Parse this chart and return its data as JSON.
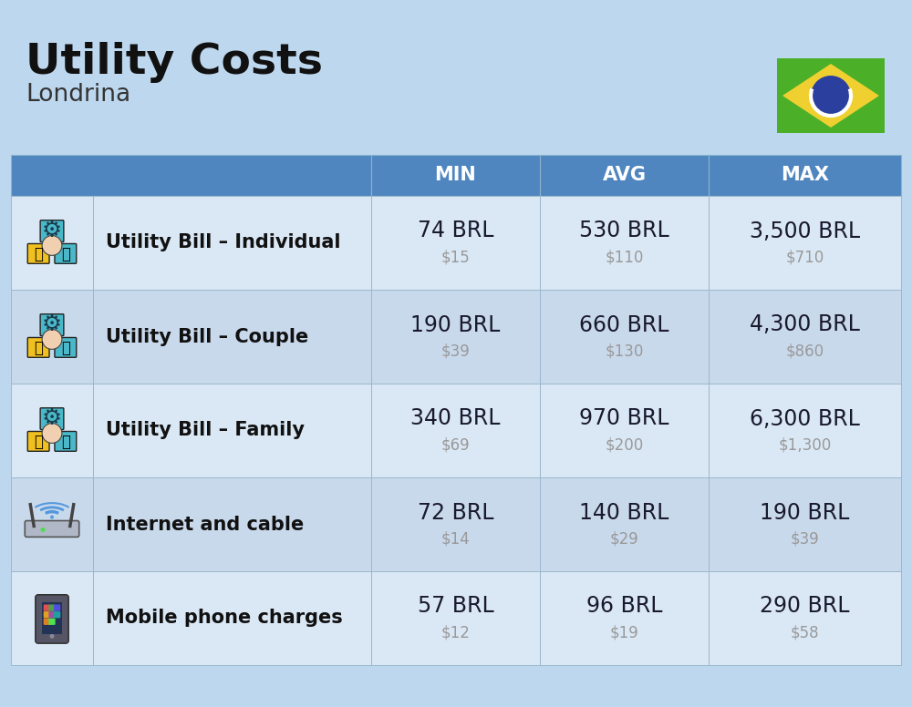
{
  "title": "Utility Costs",
  "subtitle": "Londrina",
  "background_color": "#bdd7ee",
  "header_bg_color": "#4f86c0",
  "header_text_color": "#ffffff",
  "row_bg_light": "#dae8f5",
  "row_bg_dark": "#c9d9ec",
  "col_headers": [
    "MIN",
    "AVG",
    "MAX"
  ],
  "rows": [
    {
      "label": "Utility Bill – Individual",
      "min_brl": "74 BRL",
      "min_usd": "$15",
      "avg_brl": "530 BRL",
      "avg_usd": "$110",
      "max_brl": "3,500 BRL",
      "max_usd": "$710"
    },
    {
      "label": "Utility Bill – Couple",
      "min_brl": "190 BRL",
      "min_usd": "$39",
      "avg_brl": "660 BRL",
      "avg_usd": "$130",
      "max_brl": "4,300 BRL",
      "max_usd": "$860"
    },
    {
      "label": "Utility Bill – Family",
      "min_brl": "340 BRL",
      "min_usd": "$69",
      "avg_brl": "970 BRL",
      "avg_usd": "$200",
      "max_brl": "6,300 BRL",
      "max_usd": "$1,300"
    },
    {
      "label": "Internet and cable",
      "min_brl": "72 BRL",
      "min_usd": "$14",
      "avg_brl": "140 BRL",
      "avg_usd": "$29",
      "max_brl": "190 BRL",
      "max_usd": "$39"
    },
    {
      "label": "Mobile phone charges",
      "min_brl": "57 BRL",
      "min_usd": "$12",
      "avg_brl": "96 BRL",
      "avg_usd": "$19",
      "max_brl": "290 BRL",
      "max_usd": "$58"
    }
  ],
  "brl_color": "#1a1a2e",
  "usd_color": "#999999",
  "label_color": "#111111",
  "title_fontsize": 34,
  "subtitle_fontsize": 19,
  "header_fontsize": 15,
  "row_label_fontsize": 15,
  "cell_brl_fontsize": 17,
  "cell_usd_fontsize": 12,
  "flag_green": "#4caf28",
  "flag_yellow": "#f0d030",
  "flag_blue": "#2b3f9e",
  "flag_white": "#ffffff"
}
